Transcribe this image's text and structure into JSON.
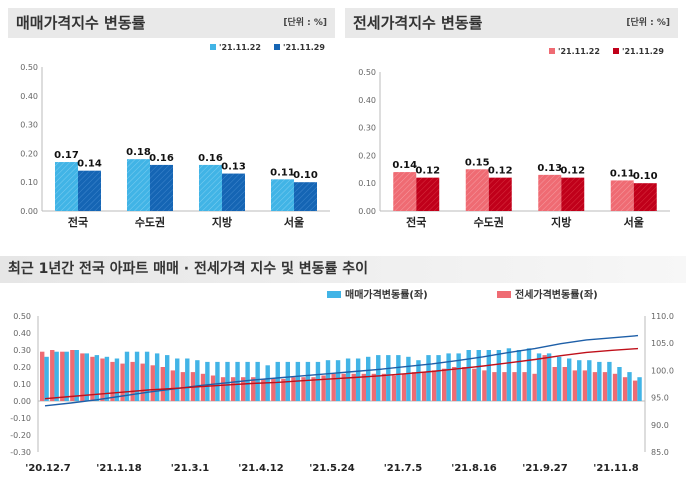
{
  "panel_left": {
    "title": "매매가격지수 변동률",
    "unit": "[단위 : %]"
  },
  "panel_right": {
    "title": "전세가격지수 변동률",
    "unit": "[단위 : %]"
  },
  "bottom": {
    "title": "최근 1년간 전국 아파트 매매 · 전세가격 지수 및 변동률 추이"
  },
  "colors": {
    "sale_a": "#41b4e6",
    "sale_b": "#1565b4",
    "jeonse_a": "#ef6b73",
    "jeonse_b": "#c0001a",
    "line_sale": "#1e5fa8",
    "line_jeonse": "#c0101a"
  },
  "chart_data": [
    {
      "type": "bar",
      "categories": [
        "전국",
        "수도권",
        "지방",
        "서울"
      ],
      "series": [
        {
          "name": "'21.11.22",
          "values": [
            0.17,
            0.18,
            0.16,
            0.11
          ]
        },
        {
          "name": "'21.11.29",
          "values": [
            0.14,
            0.16,
            0.13,
            0.1
          ]
        }
      ],
      "ylim": [
        0,
        0.5
      ],
      "yticks": [
        "0.00",
        "0.10",
        "0.20",
        "0.30",
        "0.40",
        "0.50"
      ]
    },
    {
      "type": "bar",
      "categories": [
        "전국",
        "수도권",
        "지방",
        "서울"
      ],
      "series": [
        {
          "name": "'21.11.22",
          "values": [
            0.14,
            0.15,
            0.13,
            0.11
          ]
        },
        {
          "name": "'21.11.29",
          "values": [
            0.12,
            0.12,
            0.12,
            0.1
          ]
        }
      ],
      "ylim": [
        0,
        0.5
      ],
      "yticks": [
        "0.00",
        "0.10",
        "0.20",
        "0.30",
        "0.40",
        "0.50"
      ]
    },
    {
      "type": "bar",
      "x_labels": [
        "'20.12.7",
        "'21.1.18",
        "'21.3.1",
        "'21.4.12",
        "'21.5.24",
        "'21.7.5",
        "'21.8.16",
        "'21.9.27",
        "'21.11.8"
      ],
      "series": [
        {
          "name": "매매가격변동률(좌)",
          "type": "bar",
          "values": [
            0.26,
            0.29,
            0.29,
            0.3,
            0.28,
            0.27,
            0.26,
            0.25,
            0.29,
            0.29,
            0.29,
            0.28,
            0.27,
            0.25,
            0.25,
            0.24,
            0.23,
            0.23,
            0.23,
            0.23,
            0.23,
            0.23,
            0.21,
            0.23,
            0.23,
            0.23,
            0.23,
            0.23,
            0.24,
            0.24,
            0.25,
            0.25,
            0.26,
            0.27,
            0.27,
            0.27,
            0.26,
            0.24,
            0.27,
            0.27,
            0.28,
            0.28,
            0.3,
            0.3,
            0.3,
            0.3,
            0.31,
            0.3,
            0.31,
            0.28,
            0.28,
            0.26,
            0.25,
            0.24,
            0.24,
            0.23,
            0.23,
            0.2,
            0.17,
            0.14
          ]
        },
        {
          "name": "전세가격변동률(좌)",
          "type": "bar",
          "values": [
            0.29,
            0.3,
            0.29,
            0.3,
            0.28,
            0.26,
            0.25,
            0.23,
            0.22,
            0.23,
            0.22,
            0.21,
            0.2,
            0.18,
            0.17,
            0.17,
            0.16,
            0.15,
            0.14,
            0.14,
            0.14,
            0.14,
            0.13,
            0.13,
            0.13,
            0.14,
            0.14,
            0.14,
            0.15,
            0.16,
            0.16,
            0.16,
            0.16,
            0.16,
            0.16,
            0.15,
            0.16,
            0.17,
            0.17,
            0.18,
            0.19,
            0.2,
            0.2,
            0.19,
            0.18,
            0.17,
            0.17,
            0.17,
            0.17,
            0.16,
            0.27,
            0.2,
            0.2,
            0.18,
            0.18,
            0.17,
            0.17,
            0.16,
            0.14,
            0.12
          ]
        },
        {
          "name": "매매가격지수(우)",
          "type": "line",
          "values": [
            93.5,
            94.0,
            94.6,
            95.3,
            96.0,
            96.6,
            97.2,
            97.7,
            98.2,
            98.6,
            99.0,
            99.4,
            99.8,
            100.2,
            100.7,
            101.2,
            101.8,
            102.5,
            103.3,
            104.0,
            104.9,
            105.6,
            106.0,
            106.4
          ]
        },
        {
          "name": "전세가격지수(우)",
          "type": "line",
          "values": [
            94.8,
            95.2,
            95.6,
            96.0,
            96.4,
            96.7,
            97.0,
            97.3,
            97.6,
            97.8,
            98.1,
            98.4,
            98.7,
            99.0,
            99.4,
            99.8,
            100.3,
            100.8,
            101.4,
            102.0,
            102.7,
            103.3,
            103.7,
            104.0
          ]
        }
      ],
      "ylim_left": [
        -0.3,
        0.5
      ],
      "yticks_left": [
        "-0.30",
        "-0.20",
        "-0.10",
        "0.00",
        "0.10",
        "0.20",
        "0.30",
        "0.40",
        "0.50"
      ],
      "ylim_right": [
        85.0,
        110.0
      ],
      "yticks_right": [
        "85.0",
        "90.0",
        "95.0",
        "100.0",
        "105.0",
        "110.0"
      ]
    }
  ]
}
